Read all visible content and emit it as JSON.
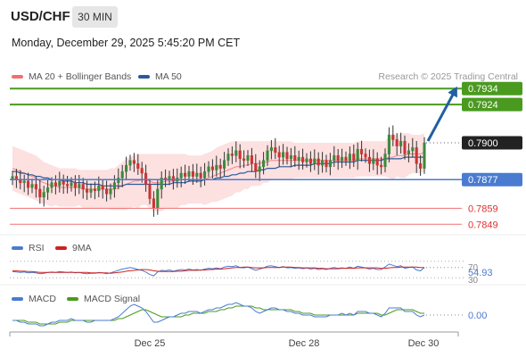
{
  "header": {
    "symbol": "USD/CHF",
    "timeframe": "30 MIN",
    "datetime": "Monday, December 29, 2025 5:45:20 PM CET"
  },
  "legend": {
    "ma20_label": "MA 20 + Bollinger Bands",
    "ma20_color": "#f07070",
    "ma50_label": "MA 50",
    "ma50_color": "#2a5a9a",
    "research": "Research © 2025 Trading Central",
    "rsi_label": "RSI",
    "rsi_color": "#4a7bd0",
    "rsi_ma_label": "9MA",
    "rsi_ma_color": "#d02020",
    "macd_label": "MACD",
    "macd_color": "#4a7bd0",
    "macd_signal_label": "MACD Signal",
    "macd_signal_color": "#4a9a20"
  },
  "levels": {
    "r2": "0.7934",
    "r1": "0.7924",
    "current": "0.7900",
    "pivot": "0.7877",
    "s1": "0.7859",
    "s2": "0.7849"
  },
  "colors": {
    "resistance": "#4a9a20",
    "pivot": "#4a7bd0",
    "support": "#f07070",
    "arrow": "#2060a0",
    "bullish": "#3a8a3a",
    "bearish": "#cc3333",
    "bollinger": "#fde0e0"
  },
  "rsi": {
    "value": "54.93",
    "upper_tick": "70",
    "lower_tick": "30"
  },
  "macd": {
    "value": "0.00"
  },
  "xaxis": {
    "ticks": [
      "Dec 25",
      "Dec 28",
      "Dec 30"
    ]
  },
  "chart_data": {
    "type": "candlestick",
    "symbol": "USD/CHF",
    "interval": "30 MIN",
    "ylim": [
      0.7843,
      0.7938
    ],
    "x_ticks": [
      "Dec 25",
      "Dec 28",
      "Dec 30"
    ],
    "closes": [
      0.7879,
      0.7877,
      0.7875,
      0.7876,
      0.7872,
      0.7874,
      0.7871,
      0.7866,
      0.7869,
      0.7872,
      0.7875,
      0.7873,
      0.7876,
      0.7874,
      0.7873,
      0.7875,
      0.7872,
      0.7874,
      0.7871,
      0.7869,
      0.7871,
      0.787,
      0.7873,
      0.7871,
      0.7868,
      0.7871,
      0.7875,
      0.7878,
      0.7882,
      0.7886,
      0.7889,
      0.7887,
      0.7884,
      0.7881,
      0.7874,
      0.7865,
      0.7859,
      0.7871,
      0.7878,
      0.7877,
      0.7879,
      0.7876,
      0.7878,
      0.7881,
      0.7879,
      0.7882,
      0.7879,
      0.7881,
      0.7878,
      0.7882,
      0.7885,
      0.7883,
      0.7886,
      0.7884,
      0.7889,
      0.7893,
      0.7892,
      0.7895,
      0.789,
      0.7889,
      0.7892,
      0.7887,
      0.7882,
      0.7885,
      0.7889,
      0.7895,
      0.7897,
      0.7894,
      0.7891,
      0.7894,
      0.789,
      0.7892,
      0.7889,
      0.7891,
      0.7888,
      0.789,
      0.7887,
      0.789,
      0.7886,
      0.7889,
      0.7885,
      0.7889,
      0.7892,
      0.7889,
      0.7891,
      0.7889,
      0.7893,
      0.7889,
      0.7896,
      0.7893,
      0.7891,
      0.7887,
      0.789,
      0.7886,
      0.7885,
      0.7893,
      0.7905,
      0.7902,
      0.7898,
      0.7901,
      0.7893,
      0.7895,
      0.7897,
      0.7887,
      0.7884,
      0.79
    ],
    "ma20_bollinger": {
      "middle": [
        0.7884,
        0.7883,
        0.7882,
        0.7881,
        0.788,
        0.7879,
        0.7878,
        0.7876,
        0.7875,
        0.7874,
        0.7873,
        0.7873,
        0.7872,
        0.7872,
        0.7872,
        0.7872,
        0.7872,
        0.7872,
        0.7871,
        0.7871,
        0.7871,
        0.7871,
        0.7871,
        0.7871,
        0.7871,
        0.7871,
        0.7871,
        0.7872,
        0.7873,
        0.7874,
        0.7875,
        0.7876,
        0.7876,
        0.7877,
        0.7877,
        0.7876,
        0.7875,
        0.7875,
        0.7875,
        0.7876,
        0.7876,
        0.7876,
        0.7876,
        0.7877,
        0.7877,
        0.7877,
        0.7877,
        0.7877,
        0.7877,
        0.7877,
        0.7878,
        0.7879,
        0.788,
        0.7881,
        0.7882,
        0.7883,
        0.7884,
        0.7885,
        0.7885,
        0.7886,
        0.7886,
        0.7887,
        0.7887,
        0.7887,
        0.7888,
        0.7888,
        0.7889,
        0.7889,
        0.7889,
        0.7889,
        0.7889,
        0.7889,
        0.7889,
        0.7889,
        0.7889,
        0.7889,
        0.7889,
        0.7889,
        0.7889,
        0.7889,
        0.7889,
        0.7889,
        0.7889,
        0.7889,
        0.7889,
        0.7889,
        0.7889,
        0.7889,
        0.789,
        0.789,
        0.789,
        0.789,
        0.789,
        0.789,
        0.789,
        0.789,
        0.7891,
        0.7891,
        0.7892,
        0.7892,
        0.7892,
        0.7893,
        0.7893,
        0.7893,
        0.7893,
        0.7894
      ],
      "upper": [
        0.7898,
        0.7897,
        0.7896,
        0.7895,
        0.7894,
        0.7893,
        0.7892,
        0.789,
        0.7888,
        0.7887,
        0.7886,
        0.7885,
        0.7884,
        0.7884,
        0.7884,
        0.7884,
        0.7884,
        0.7883,
        0.7883,
        0.7883,
        0.7883,
        0.7883,
        0.7883,
        0.7883,
        0.7883,
        0.7884,
        0.7884,
        0.7886,
        0.7888,
        0.789,
        0.7891,
        0.7892,
        0.7893,
        0.7893,
        0.7893,
        0.7893,
        0.7893,
        0.7893,
        0.7893,
        0.7893,
        0.7893,
        0.7893,
        0.7893,
        0.7893,
        0.7893,
        0.7892,
        0.7892,
        0.7892,
        0.7892,
        0.7893,
        0.7894,
        0.7895,
        0.7897,
        0.7898,
        0.7899,
        0.79,
        0.7901,
        0.7901,
        0.7901,
        0.7901,
        0.7901,
        0.7901,
        0.7901,
        0.7901,
        0.7901,
        0.7901,
        0.7901,
        0.7901,
        0.7901,
        0.7901,
        0.7901,
        0.7901,
        0.79,
        0.79,
        0.79,
        0.79,
        0.79,
        0.79,
        0.79,
        0.79,
        0.79,
        0.79,
        0.79,
        0.79,
        0.79,
        0.79,
        0.79,
        0.79,
        0.7901,
        0.7901,
        0.7901,
        0.7901,
        0.7901,
        0.7901,
        0.7901,
        0.7901,
        0.7904,
        0.7905,
        0.7905,
        0.7906,
        0.7906,
        0.7906,
        0.7905,
        0.7905,
        0.7905,
        0.7906
      ],
      "lower": [
        0.787,
        0.7869,
        0.7868,
        0.7867,
        0.7866,
        0.7865,
        0.7864,
        0.7862,
        0.7862,
        0.7861,
        0.786,
        0.7861,
        0.786,
        0.786,
        0.786,
        0.786,
        0.786,
        0.7861,
        0.7859,
        0.7859,
        0.7859,
        0.7859,
        0.7859,
        0.7859,
        0.7859,
        0.7858,
        0.7858,
        0.7858,
        0.7858,
        0.7858,
        0.7859,
        0.786,
        0.7859,
        0.7861,
        0.7861,
        0.7859,
        0.7857,
        0.7857,
        0.7857,
        0.7859,
        0.7859,
        0.7859,
        0.7859,
        0.7861,
        0.7861,
        0.7862,
        0.7862,
        0.7862,
        0.7862,
        0.7861,
        0.7862,
        0.7863,
        0.7863,
        0.7864,
        0.7865,
        0.7866,
        0.7867,
        0.7869,
        0.7869,
        0.7871,
        0.7871,
        0.7873,
        0.7873,
        0.7873,
        0.7875,
        0.7875,
        0.7877,
        0.7877,
        0.7877,
        0.7877,
        0.7877,
        0.7877,
        0.7878,
        0.7878,
        0.7878,
        0.7878,
        0.7878,
        0.7878,
        0.7878,
        0.7878,
        0.7878,
        0.7878,
        0.7878,
        0.7878,
        0.7878,
        0.7878,
        0.7878,
        0.7878,
        0.7879,
        0.7879,
        0.7879,
        0.7879,
        0.7879,
        0.7879,
        0.7879,
        0.7879,
        0.7878,
        0.7877,
        0.7879,
        0.7878,
        0.7878,
        0.788,
        0.7881,
        0.7881,
        0.7881,
        0.7882
      ]
    },
    "ma50": [
      0.7882,
      0.7882,
      0.7881,
      0.7881,
      0.788,
      0.788,
      0.7879,
      0.7879,
      0.7878,
      0.7878,
      0.7877,
      0.7877,
      0.7877,
      0.7876,
      0.7876,
      0.7876,
      0.7875,
      0.7875,
      0.7875,
      0.7874,
      0.7874,
      0.7874,
      0.7874,
      0.7873,
      0.7873,
      0.7873,
      0.7873,
      0.7873,
      0.7873,
      0.7874,
      0.7874,
      0.7874,
      0.7874,
      0.7874,
      0.7874,
      0.7874,
      0.7874,
      0.7874,
      0.7874,
      0.7874,
      0.7874,
      0.7875,
      0.7875,
      0.7875,
      0.7875,
      0.7876,
      0.7876,
      0.7876,
      0.7876,
      0.7877,
      0.7877,
      0.7877,
      0.7878,
      0.7878,
      0.7879,
      0.7879,
      0.788,
      0.788,
      0.7881,
      0.7881,
      0.7882,
      0.7882,
      0.7882,
      0.7883,
      0.7883,
      0.7884,
      0.7884,
      0.7884,
      0.7885,
      0.7885,
      0.7885,
      0.7885,
      0.7886,
      0.7886,
      0.7886,
      0.7886,
      0.7886,
      0.7887,
      0.7887,
      0.7887,
      0.7887,
      0.7887,
      0.7888,
      0.7888,
      0.7888,
      0.7888,
      0.7888,
      0.7888,
      0.7889,
      0.7889,
      0.7889,
      0.7889,
      0.7889,
      0.7889,
      0.7889,
      0.789,
      0.789,
      0.789,
      0.789,
      0.789,
      0.7891,
      0.7891,
      0.7891,
      0.7891,
      0.7891,
      0.7891
    ],
    "levels": {
      "resistance": [
        0.7934,
        0.7924
      ],
      "pivot": 0.7877,
      "support": [
        0.7859,
        0.7849
      ],
      "last": 0.79
    },
    "rsi": {
      "value": 54.93,
      "upper": 70,
      "lower": 30,
      "values": [
        45,
        44,
        43,
        44,
        42,
        43,
        42,
        40,
        41,
        43,
        44,
        43,
        45,
        44,
        43,
        44,
        42,
        43,
        41,
        40,
        41,
        41,
        43,
        42,
        40,
        42,
        45,
        48,
        51,
        53,
        55,
        53,
        50,
        48,
        44,
        38,
        35,
        44,
        48,
        47,
        49,
        46,
        48,
        50,
        49,
        51,
        49,
        50,
        48,
        51,
        53,
        52,
        54,
        52,
        56,
        58,
        57,
        59,
        55,
        54,
        56,
        52,
        48,
        51,
        54,
        58,
        59,
        57,
        55,
        57,
        54,
        55,
        53,
        54,
        52,
        54,
        51,
        53,
        50,
        52,
        50,
        53,
        55,
        53,
        54,
        53,
        56,
        53,
        58,
        56,
        54,
        51,
        53,
        50,
        50,
        56,
        63,
        60,
        57,
        59,
        53,
        55,
        56,
        49,
        47,
        55
      ],
      "ma9": [
        47,
        47,
        46,
        46,
        45,
        45,
        44,
        43,
        43,
        43,
        43,
        43,
        43,
        43,
        43,
        43,
        43,
        43,
        43,
        43,
        42,
        42,
        42,
        42,
        42,
        41,
        42,
        43,
        44,
        46,
        47,
        48,
        49,
        50,
        50,
        49,
        47,
        46,
        45,
        45,
        45,
        45,
        46,
        46,
        47,
        48,
        48,
        48,
        49,
        49,
        50,
        50,
        51,
        51,
        52,
        53,
        54,
        55,
        55,
        56,
        56,
        55,
        54,
        54,
        54,
        55,
        55,
        55,
        55,
        56,
        56,
        56,
        55,
        55,
        54,
        54,
        54,
        54,
        53,
        53,
        52,
        52,
        52,
        52,
        53,
        53,
        53,
        53,
        54,
        54,
        54,
        54,
        54,
        54,
        53,
        53,
        54,
        55,
        55,
        56,
        56,
        56,
        56,
        56,
        55,
        55
      ]
    },
    "macd": {
      "value": 0.0,
      "macd": [
        -0.0003,
        -0.0003,
        -0.0004,
        -0.0004,
        -0.0005,
        -0.0005,
        -0.0005,
        -0.0006,
        -0.0006,
        -0.0005,
        -0.0004,
        -0.0004,
        -0.0003,
        -0.0003,
        -0.0003,
        -0.0002,
        -0.0003,
        -0.0003,
        -0.0003,
        -0.0004,
        -0.0004,
        -0.0003,
        -0.0003,
        -0.0003,
        -0.0003,
        -0.0003,
        -0.0002,
        -0.0001,
        0.0001,
        0.0003,
        0.0005,
        0.0006,
        0.0005,
        0.0004,
        0.0002,
        -0.0001,
        -0.0004,
        -0.0004,
        -0.0003,
        -0.0002,
        -0.0001,
        -0.0001,
        0.0,
        0.0001,
        0.0001,
        0.0002,
        0.0002,
        0.0002,
        0.0001,
        0.0002,
        0.0003,
        0.0003,
        0.0004,
        0.0004,
        0.0005,
        0.0006,
        0.0006,
        0.0007,
        0.0006,
        0.0005,
        0.0005,
        0.0004,
        0.0002,
        0.0001,
        0.0002,
        0.0003,
        0.0004,
        0.0004,
        0.0003,
        0.0003,
        0.0002,
        0.0002,
        0.0001,
        0.0001,
        0.0,
        0.0,
        0.0,
        -0.0001,
        -0.0001,
        -0.0001,
        -0.0001,
        0.0,
        0.0,
        0.0,
        0.0001,
        0.0,
        0.0001,
        0.0,
        0.0002,
        0.0002,
        0.0002,
        0.0001,
        0.0001,
        0.0,
        -0.0001,
        0.0001,
        0.0004,
        0.0004,
        0.0004,
        0.0004,
        0.0002,
        0.0002,
        0.0002,
        0.0,
        -0.0001,
        0.0
      ],
      "signal": [
        -0.0003,
        -0.0003,
        -0.0003,
        -0.0003,
        -0.0004,
        -0.0004,
        -0.0004,
        -0.0005,
        -0.0005,
        -0.0005,
        -0.0005,
        -0.0005,
        -0.0004,
        -0.0004,
        -0.0004,
        -0.0003,
        -0.0003,
        -0.0003,
        -0.0003,
        -0.0003,
        -0.0003,
        -0.0003,
        -0.0003,
        -0.0003,
        -0.0003,
        -0.0003,
        -0.0003,
        -0.0002,
        -0.0002,
        -0.0001,
        0.0,
        0.0001,
        0.0002,
        0.0003,
        0.0003,
        0.0002,
        0.0001,
        -0.0,
        -0.0001,
        -0.0001,
        -0.0001,
        -0.0001,
        -0.0001,
        -0.0001,
        -0.0,
        0.0,
        0.0001,
        0.0001,
        0.0001,
        0.0001,
        0.0002,
        0.0002,
        0.0002,
        0.0003,
        0.0003,
        0.0004,
        0.0004,
        0.0005,
        0.0005,
        0.0005,
        0.0005,
        0.0005,
        0.0004,
        0.0004,
        0.0003,
        0.0003,
        0.0003,
        0.0003,
        0.0003,
        0.0003,
        0.0003,
        0.0003,
        0.0002,
        0.0002,
        0.0001,
        0.0001,
        0.0001,
        0.0,
        0.0,
        -0.0,
        -0.0,
        -0.0,
        -0.0,
        -0.0,
        0.0,
        0.0,
        0.0,
        0.0,
        0.0001,
        0.0001,
        0.0001,
        0.0001,
        0.0001,
        0.0001,
        0.0,
        0.0,
        0.0001,
        0.0002,
        0.0003,
        0.0003,
        0.0003,
        0.0003,
        0.0003,
        0.0002,
        0.0001,
        0.0001
      ]
    }
  }
}
